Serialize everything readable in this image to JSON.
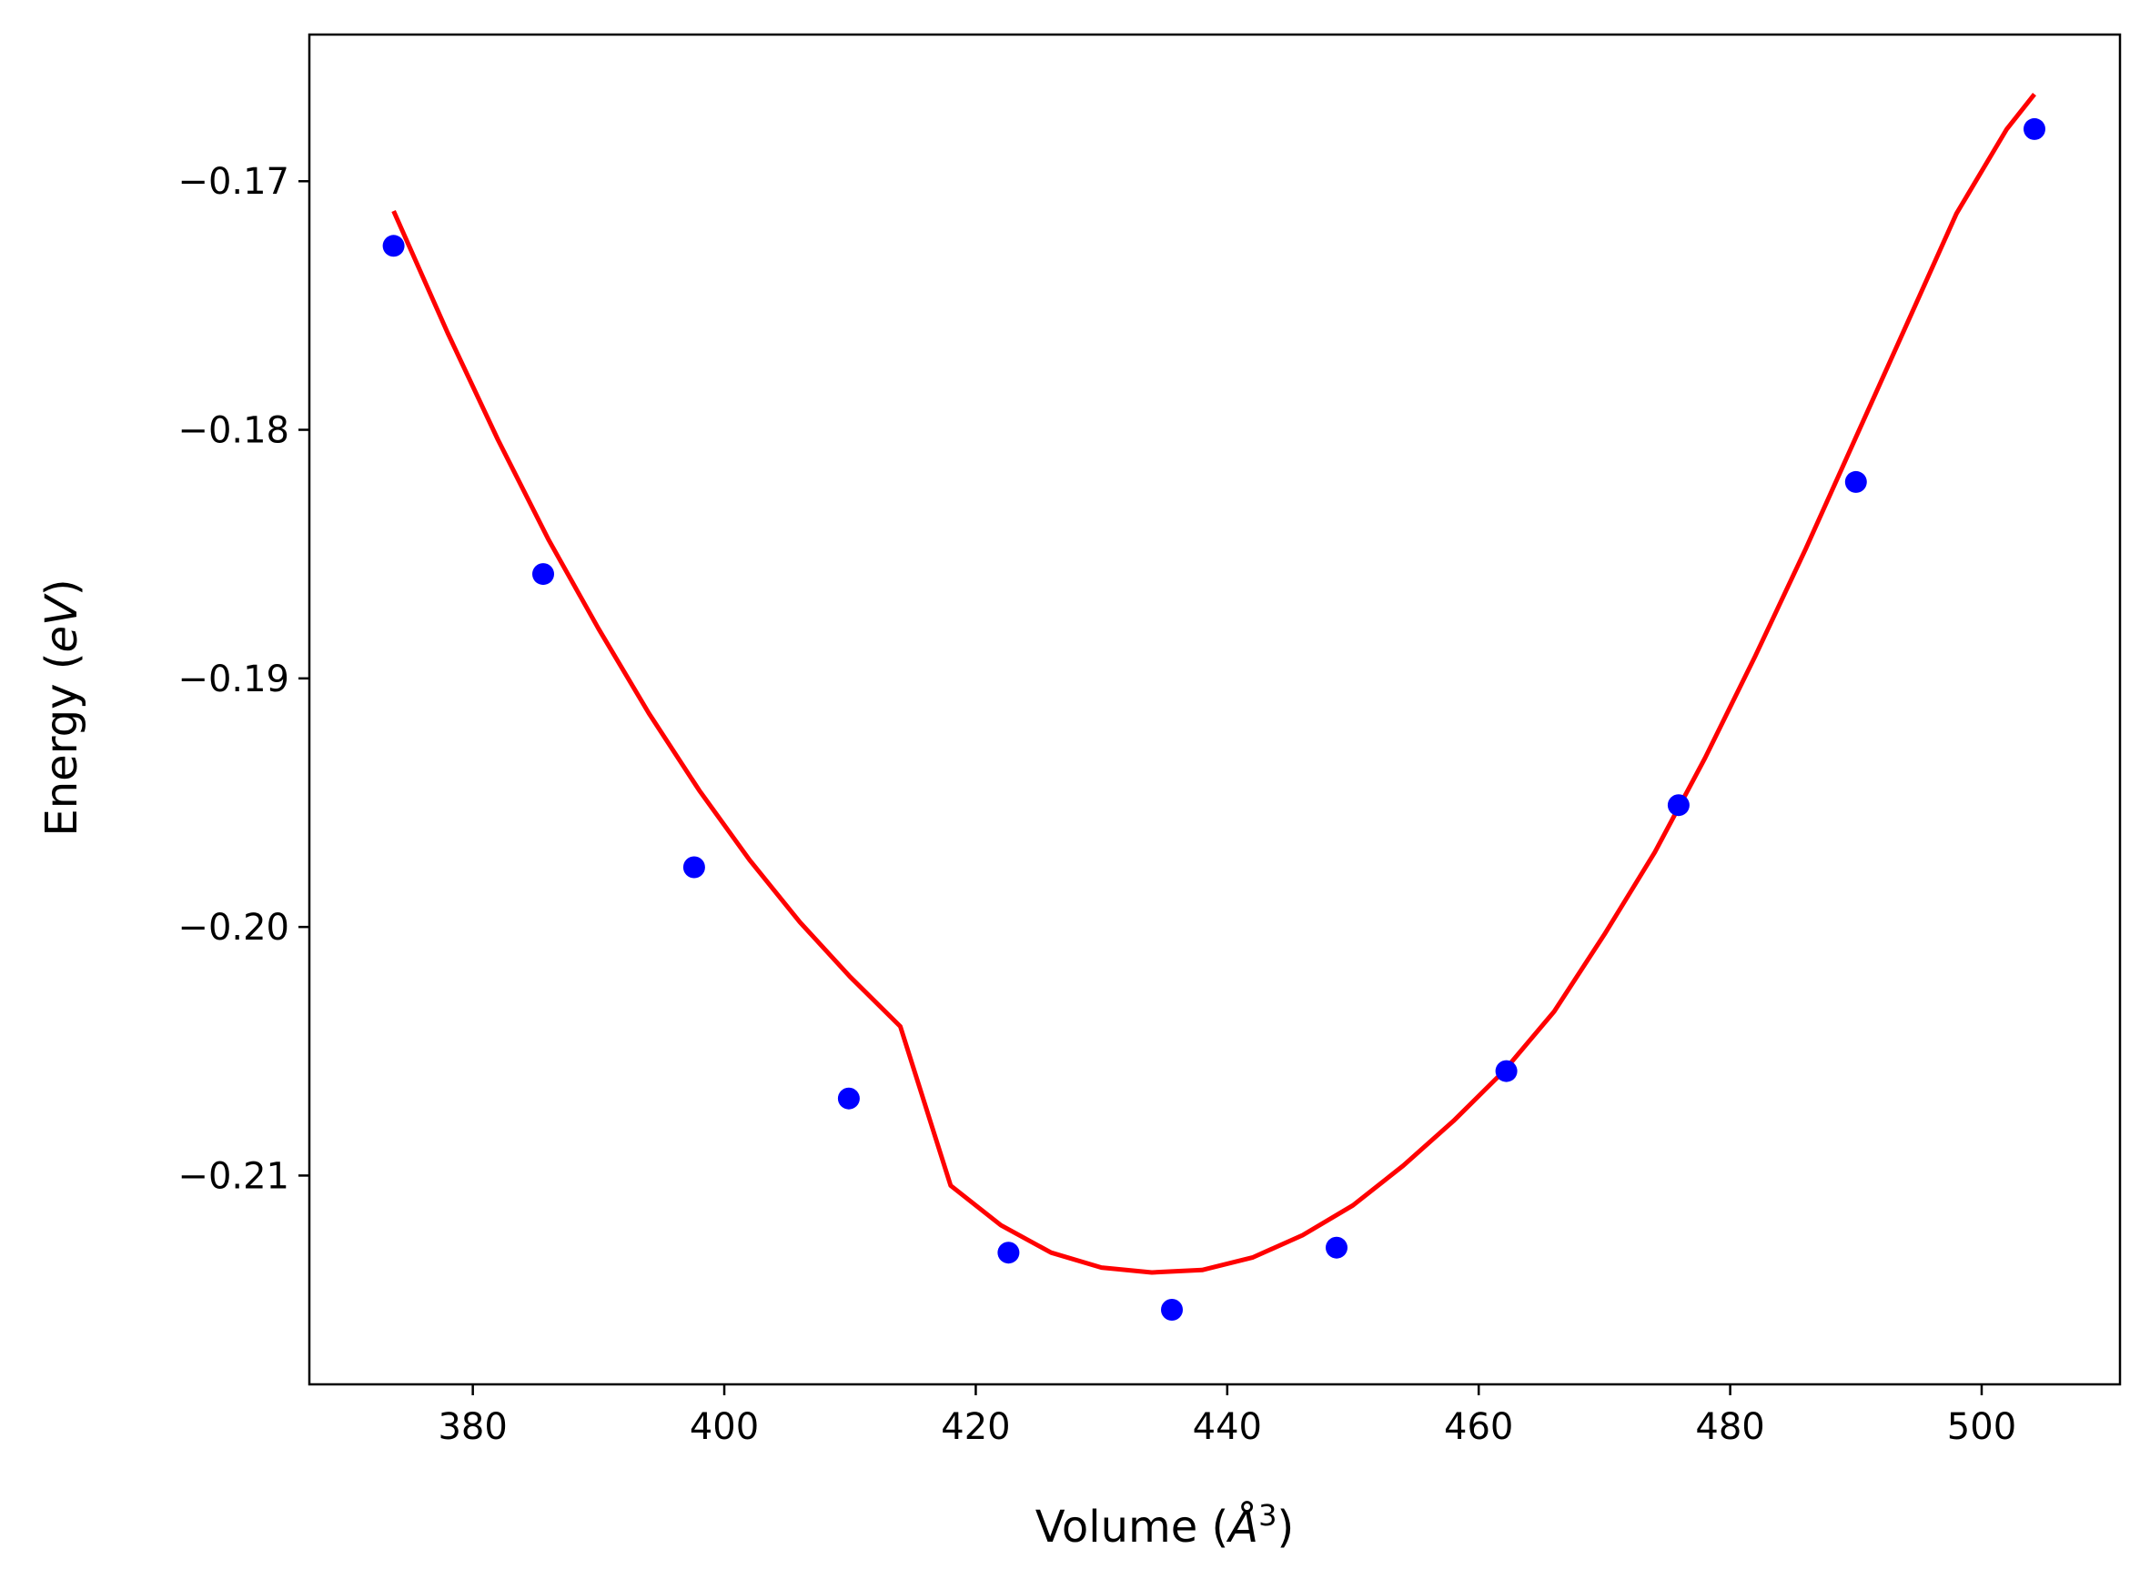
{
  "chart_data": {
    "type": "scatter",
    "title": "",
    "xlabel": "Volume (",
    "xlabel_symbol": "Å",
    "xlabel_sup": "3",
    "xlabel_close": ")",
    "ylabel": "Energy (",
    "ylabel_unit": "eV",
    "ylabel_close": ")",
    "xlim": [
      367,
      511
    ],
    "ylim": [
      -0.2184,
      -0.1641
    ],
    "grid": false,
    "x_ticks": [
      380,
      400,
      420,
      440,
      460,
      480,
      500
    ],
    "x_tick_labels": [
      "380",
      "400",
      "420",
      "440",
      "460",
      "480",
      "500"
    ],
    "y_ticks": [
      -0.17,
      -0.18,
      -0.19,
      -0.2,
      -0.21
    ],
    "y_tick_labels": [
      "−0.17",
      "−0.18",
      "−0.19",
      "−0.20",
      "−0.21"
    ],
    "series": [
      {
        "kind": "points",
        "color": "#0000ff",
        "x": [
          373.7,
          385.6,
          397.6,
          409.9,
          422.6,
          435.6,
          448.7,
          462.2,
          475.9,
          490.0,
          504.2
        ],
        "y": [
          -0.1726,
          -0.1858,
          -0.1976,
          -0.2069,
          -0.2131,
          -0.2154,
          -0.2129,
          -0.2058,
          -0.1951,
          -0.1821,
          -0.1679
        ]
      },
      {
        "kind": "fit-curve",
        "color": "#ff0000",
        "x": [
          373.7,
          378,
          382,
          386,
          390,
          394,
          398,
          402,
          406,
          410,
          414,
          418,
          422,
          426,
          430,
          434,
          438,
          442,
          446,
          450,
          454,
          458,
          462,
          466,
          470,
          474,
          478,
          482,
          486,
          490,
          494,
          498,
          502,
          504.2
        ],
        "y": [
          -0.1712,
          -0.1761,
          -0.1804,
          -0.1844,
          -0.188,
          -0.1914,
          -0.1945,
          -0.1973,
          -0.1998,
          -0.202,
          -0.204,
          -0.2104,
          -0.212,
          -0.2131,
          -0.2137,
          -0.2139,
          -0.2138,
          -0.2133,
          -0.2124,
          -0.2112,
          -0.2096,
          -0.2078,
          -0.2058,
          -0.2034,
          -0.2003,
          -0.197,
          -0.1932,
          -0.1891,
          -0.1848,
          -0.1803,
          -0.1758,
          -0.1713,
          -0.1679,
          -0.1665
        ]
      }
    ]
  }
}
